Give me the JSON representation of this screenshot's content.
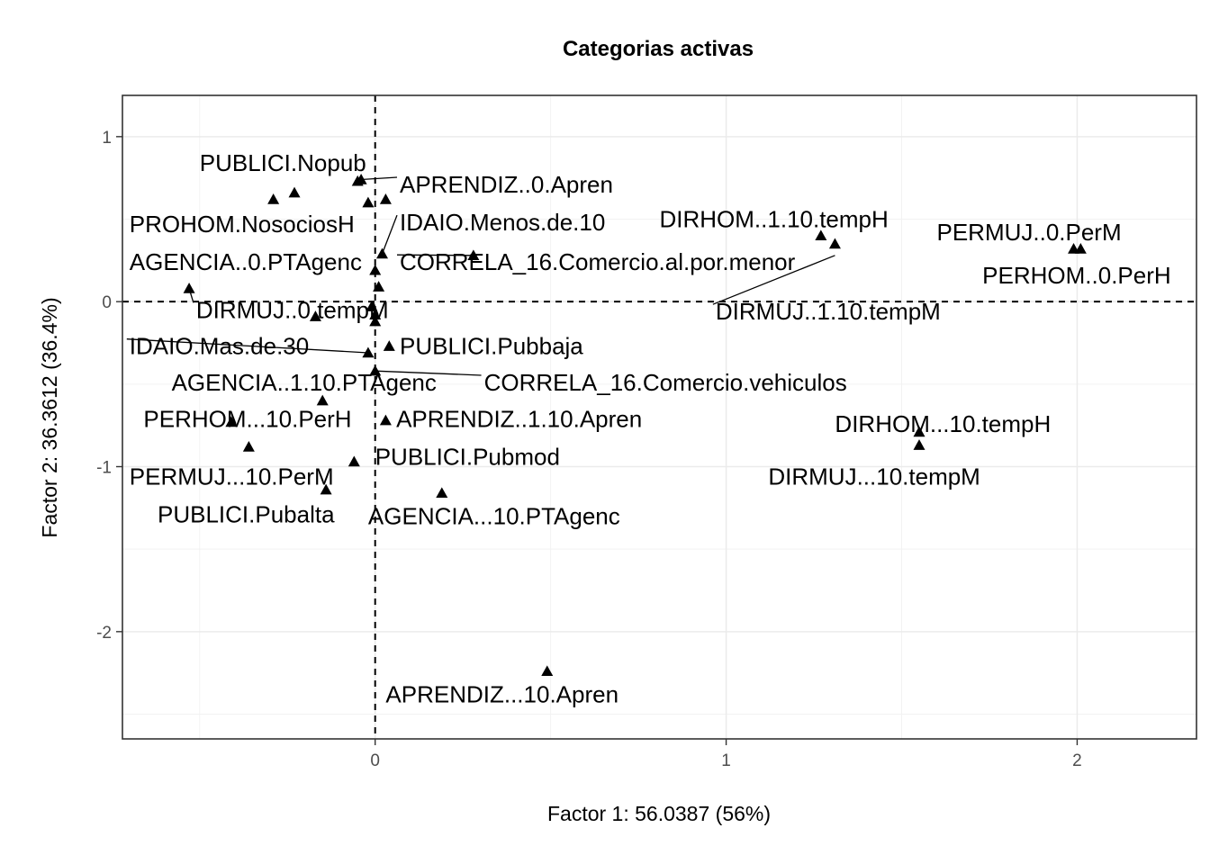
{
  "chart_data": {
    "type": "scatter",
    "title": "Categorias activas",
    "xlabel": "Factor 1: 56.0387 (56%)",
    "ylabel": "Factor 2: 36.3612 (36.4%)",
    "xlim": [
      -0.72,
      2.34
    ],
    "ylim": [
      -2.65,
      1.25
    ],
    "xticks": [
      0,
      1,
      2
    ],
    "yticks": [
      1,
      0,
      -1,
      -2
    ],
    "grid": true,
    "legend": "none",
    "reference_lines": {
      "x": 0,
      "y": 0
    },
    "marker": "triangle",
    "points": [
      {
        "label": "PUBLICI.Nopub",
        "x": -0.04,
        "y": 0.74
      },
      {
        "label": "APRENDIZ..0.Apren",
        "x": -0.05,
        "y": 0.73
      },
      {
        "label": "PROHOM.NosociosH",
        "x": -0.29,
        "y": 0.62
      },
      {
        "label": "AGENCIA..0.PTAgenc",
        "x": -0.23,
        "y": 0.66
      },
      {
        "label": "IDAIO.Menos.de.10",
        "x": -0.02,
        "y": 0.6
      },
      {
        "label": "CORRELA_16.Comercio.al.por.menor",
        "x": 0.03,
        "y": 0.62
      },
      {
        "label": "DIRMUJ..0.tempM",
        "x": 0.02,
        "y": 0.29
      },
      {
        "label": "IDAIO.Mas.de.30",
        "x": 0.0,
        "y": 0.19
      },
      {
        "label": "PUBLICI.Pubbaja",
        "x": 0.28,
        "y": 0.28
      },
      {
        "label": "AGENCIA..1.10.PTAgenc",
        "x": 0.01,
        "y": 0.09
      },
      {
        "label": "CORRELA_16.Comercio.vehiculos",
        "x": -0.53,
        "y": 0.08
      },
      {
        "label": "APRENDIZ..1.10.Apren",
        "x": -0.01,
        "y": -0.03
      },
      {
        "label": "PERHOM...10.PerH",
        "x": 0.0,
        "y": -0.08
      },
      {
        "label": "PUBLICI.Pubmod",
        "x": 0.0,
        "y": -0.12
      },
      {
        "label": "PERMUJ...10.PerM",
        "x": -0.17,
        "y": -0.09
      },
      {
        "label": "PUBLICI.Pubalta",
        "x": -0.02,
        "y": -0.31
      },
      {
        "label": "AGENCIA...10.PTAgenc",
        "x": 0.04,
        "y": -0.27
      },
      {
        "label": "DIRHOM..1.10.tempH",
        "x": 0.0,
        "y": -0.42
      },
      {
        "label": "DIRMUJ..1.10.tempM",
        "x": -0.15,
        "y": -0.6
      },
      {
        "label": "PERMUJ..0.PerM",
        "x": 0.03,
        "y": -0.72
      },
      {
        "label": "PERHOM..0.PerH",
        "x": -0.41,
        "y": -0.73
      },
      {
        "label": "DIRHOM...10.tempH",
        "x": -0.36,
        "y": -0.88
      },
      {
        "label": "DIRMUJ...10.tempM",
        "x": -0.06,
        "y": -0.97
      },
      {
        "label": "APRENDIZ...10.Apren",
        "x": -0.14,
        "y": -1.14
      },
      {
        "label": "",
        "x": 0.19,
        "y": -1.16
      },
      {
        "label": "",
        "x": 1.27,
        "y": 0.4
      },
      {
        "label": "",
        "x": 1.31,
        "y": 0.35
      },
      {
        "label": "",
        "x": 1.99,
        "y": 0.32
      },
      {
        "label": "",
        "x": 2.01,
        "y": 0.32
      },
      {
        "label": "",
        "x": 1.55,
        "y": -0.79
      },
      {
        "label": "",
        "x": 1.55,
        "y": -0.87
      },
      {
        "label": "",
        "x": 0.49,
        "y": -2.24
      }
    ],
    "labels": [
      {
        "text": "PUBLICI.Nopub",
        "x": -0.5,
        "y": 0.84,
        "anchor": "start"
      },
      {
        "text": "APRENDIZ..0.Apren",
        "x": 0.07,
        "y": 0.71,
        "anchor": "start",
        "line_to": [
          -0.04,
          0.74
        ]
      },
      {
        "text": "PROHOM.NosociosH",
        "x": -0.7,
        "y": 0.47,
        "anchor": "start"
      },
      {
        "text": "IDAIO.Menos.de.10",
        "x": 0.07,
        "y": 0.48,
        "anchor": "start",
        "line_to": [
          0.02,
          0.29
        ]
      },
      {
        "text": "DIRHOM..1.10.tempH",
        "x": 0.81,
        "y": 0.5,
        "anchor": "start"
      },
      {
        "text": "PERMUJ..0.PerM",
        "x": 1.6,
        "y": 0.42,
        "anchor": "start"
      },
      {
        "text": "AGENCIA..0.PTAgenc",
        "x": -0.7,
        "y": 0.24,
        "anchor": "start"
      },
      {
        "text": "CORRELA_16.Comercio.al.por.menor",
        "x": 0.07,
        "y": 0.24,
        "anchor": "start",
        "line_to": [
          0.28,
          0.28
        ]
      },
      {
        "text": "PERHOM..0.PerH",
        "x": 1.73,
        "y": 0.16,
        "anchor": "start"
      },
      {
        "text": "DIRMUJ..0.tempM",
        "x": -0.51,
        "y": -0.05,
        "anchor": "start",
        "line_to": [
          -0.53,
          0.08
        ]
      },
      {
        "text": "DIRMUJ..1.10.tempM",
        "x": 0.97,
        "y": -0.06,
        "anchor": "start",
        "line_to": [
          1.31,
          0.28
        ]
      },
      {
        "text": "IDAIO.Mas.de.30",
        "x": -0.7,
        "y": -0.27,
        "anchor": "start",
        "line_to": [
          -0.02,
          -0.31
        ]
      },
      {
        "text": "PUBLICI.Pubbaja",
        "x": 0.07,
        "y": -0.27,
        "anchor": "start"
      },
      {
        "text": "AGENCIA..1.10.PTAgenc",
        "x": -0.58,
        "y": -0.49,
        "anchor": "start"
      },
      {
        "text": "CORRELA_16.Comercio.vehiculos",
        "x": 0.31,
        "y": -0.49,
        "anchor": "start",
        "line_to": [
          0.0,
          -0.42
        ]
      },
      {
        "text": "PERHOM...10.PerH",
        "x": -0.66,
        "y": -0.71,
        "anchor": "start"
      },
      {
        "text": "APRENDIZ..1.10.Apren",
        "x": 0.06,
        "y": -0.71,
        "anchor": "start"
      },
      {
        "text": "DIRHOM...10.tempH",
        "x": 1.31,
        "y": -0.74,
        "anchor": "start"
      },
      {
        "text": "PUBLICI.Pubmod",
        "x": 0.0,
        "y": -0.94,
        "anchor": "start"
      },
      {
        "text": "PERMUJ...10.PerM",
        "x": -0.7,
        "y": -1.06,
        "anchor": "start"
      },
      {
        "text": "DIRMUJ...10.tempM",
        "x": 1.12,
        "y": -1.06,
        "anchor": "start"
      },
      {
        "text": "PUBLICI.Pubalta",
        "x": -0.62,
        "y": -1.29,
        "anchor": "start"
      },
      {
        "text": "AGENCIA...10.PTAgenc",
        "x": -0.02,
        "y": -1.3,
        "anchor": "start"
      },
      {
        "text": "APRENDIZ...10.Apren",
        "x": 0.03,
        "y": -2.38,
        "anchor": "start"
      }
    ]
  }
}
